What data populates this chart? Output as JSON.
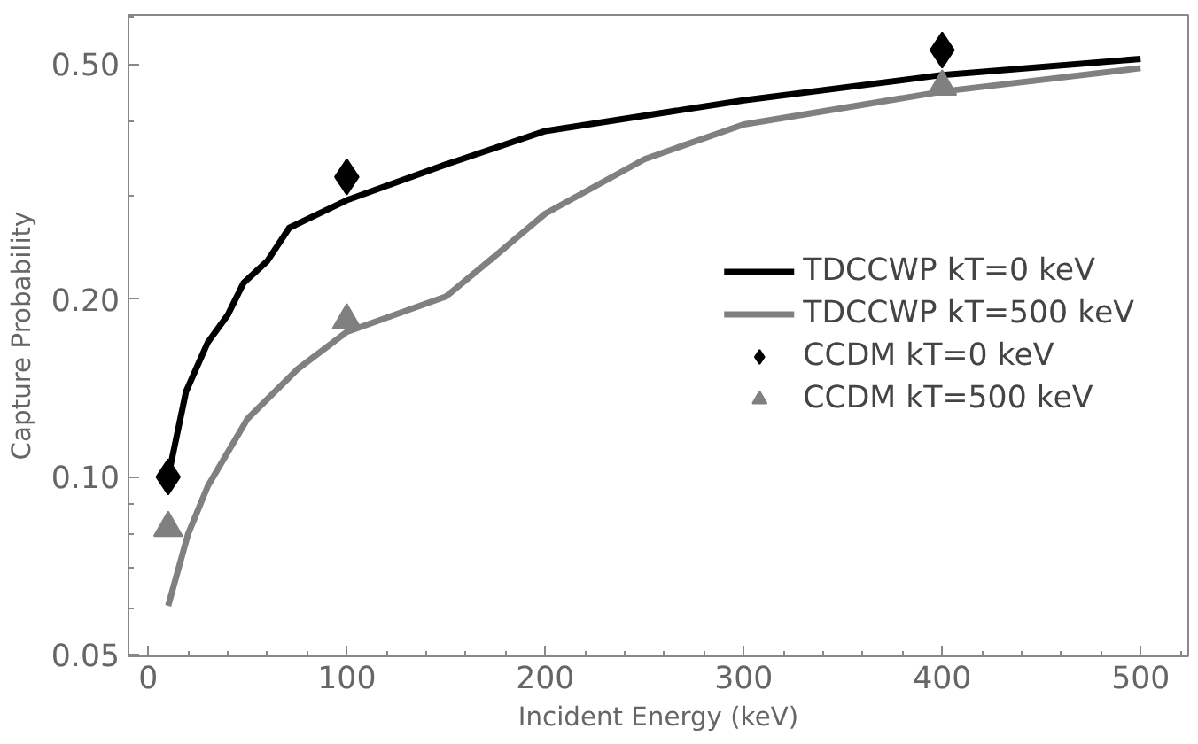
{
  "chart_data": {
    "type": "line",
    "xlabel": "Incident Energy (keV)",
    "ylabel": "Capture Probability",
    "log": "y",
    "grid": false,
    "legend": "right",
    "xlim": [
      -10,
      524
    ],
    "ylim": [
      0.0497,
      0.605
    ],
    "xticks": [
      0,
      100,
      200,
      300,
      400,
      500
    ],
    "yticks": [
      {
        "value": 0.05,
        "label": "0.05"
      },
      {
        "value": 0.1,
        "label": "0.10"
      },
      {
        "value": 0.2,
        "label": "0.20"
      },
      {
        "value": 0.5,
        "label": "0.50"
      }
    ],
    "series": [
      {
        "name": "TDCCWP kT=0 keV",
        "color": "#000000",
        "marker": "none",
        "x": [
          10,
          19,
          30,
          40,
          48,
          60,
          71,
          100,
          150,
          200,
          300,
          400,
          500
        ],
        "values": [
          0.1,
          0.1395,
          0.169,
          0.188,
          0.213,
          0.232,
          0.264,
          0.294,
          0.338,
          0.385,
          0.434,
          0.479,
          0.51
        ]
      },
      {
        "name": "TDCCWP kT=500 keV",
        "color": "#808080",
        "marker": "none",
        "x": [
          10,
          20,
          30,
          50,
          75,
          100,
          150,
          175,
          200,
          250,
          300,
          400,
          500
        ],
        "values": [
          0.0605,
          0.08,
          0.0965,
          0.1255,
          0.152,
          0.176,
          0.202,
          0.237,
          0.279,
          0.345,
          0.395,
          0.449,
          0.492
        ]
      },
      {
        "name": "CCDM kT=0 keV",
        "type": "scatter",
        "color": "#000000",
        "marker": "diamond",
        "x": [
          10,
          100,
          400
        ],
        "values": [
          0.1,
          0.322,
          0.528
        ]
      },
      {
        "name": "CCDM kT=500 keV",
        "type": "scatter",
        "color": "#808080",
        "marker": "triangle",
        "x": [
          10,
          100,
          400
        ],
        "values": [
          0.082,
          0.184,
          0.458
        ]
      }
    ]
  }
}
